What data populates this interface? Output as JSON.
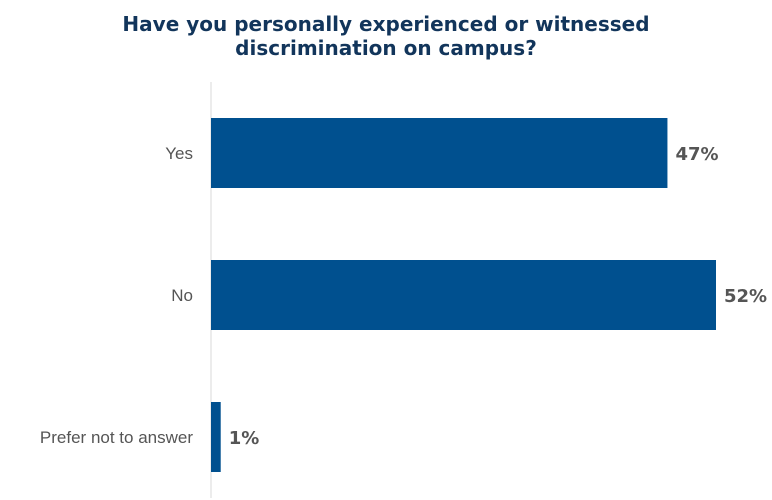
{
  "chart_data": {
    "type": "bar",
    "orientation": "horizontal",
    "title_line1": "Have you personally experienced or witnessed",
    "title_line2": "discrimination on campus?",
    "categories": [
      "Yes",
      "No",
      "Prefer not to answer"
    ],
    "values": [
      47,
      52,
      1
    ],
    "value_labels": [
      "47%",
      "52%",
      "1%"
    ],
    "unit": "%",
    "xlim": [
      0,
      52
    ],
    "bar_color": "#00508f",
    "grid": false,
    "legend": "none"
  }
}
